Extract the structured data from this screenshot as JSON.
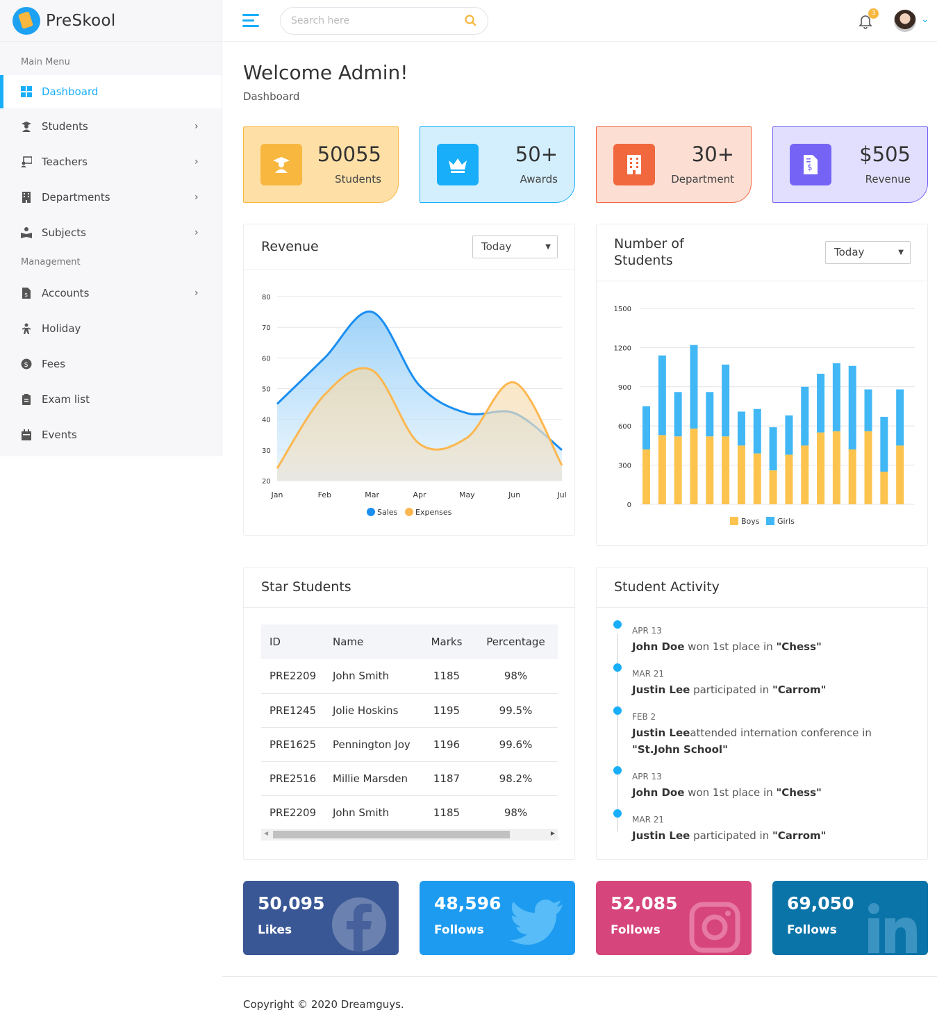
{
  "brand": {
    "name": "PreSkool"
  },
  "sidebar": {
    "main_title": "Main Menu",
    "management_title": "Management",
    "items": [
      {
        "label": "Dashboard",
        "icon": "dashboard-icon",
        "active": true
      },
      {
        "label": "Students",
        "icon": "graduate-icon",
        "submenu": true
      },
      {
        "label": "Teachers",
        "icon": "teacher-icon",
        "submenu": true
      },
      {
        "label": "Departments",
        "icon": "building-icon",
        "submenu": true
      },
      {
        "label": "Subjects",
        "icon": "book-reader-icon",
        "submenu": true
      }
    ],
    "management_items": [
      {
        "label": "Accounts",
        "icon": "invoice-icon",
        "submenu": true
      },
      {
        "label": "Holiday",
        "icon": "holiday-icon"
      },
      {
        "label": "Fees",
        "icon": "dollar-icon"
      },
      {
        "label": "Exam list",
        "icon": "clipboard-icon"
      },
      {
        "label": "Events",
        "icon": "calendar-icon"
      }
    ]
  },
  "header": {
    "search_placeholder": "Search here",
    "notification_count": "3"
  },
  "page": {
    "title": "Welcome Admin!",
    "breadcrumb": "Dashboard"
  },
  "stats": [
    {
      "value": "50055",
      "label": "Students",
      "icon": "graduate-icon",
      "color": "#f8b73f"
    },
    {
      "value": "50+",
      "label": "Awards",
      "icon": "crown-icon",
      "color": "#18aefa"
    },
    {
      "value": "30+",
      "label": "Department",
      "icon": "building-icon",
      "color": "#f1673e"
    },
    {
      "value": "$505",
      "label": "Revenue",
      "icon": "invoice-dollar-icon",
      "color": "#7563f5"
    }
  ],
  "revenue": {
    "title": "Revenue",
    "range": "Today"
  },
  "students_chart": {
    "title_line1": "Number of",
    "title_line2": "Students",
    "range": "Today"
  },
  "chart_data": [
    {
      "type": "area",
      "title": "Revenue",
      "categories": [
        "Jan",
        "Feb",
        "Mar",
        "Apr",
        "May",
        "Jun",
        "Jul"
      ],
      "series": [
        {
          "name": "Sales",
          "color": "#1a8ef1",
          "values": [
            45,
            60,
            75,
            51,
            42,
            42,
            30
          ]
        },
        {
          "name": "Expenses",
          "color": "#fcb750",
          "values": [
            24,
            48,
            56,
            32,
            34,
            52,
            25
          ]
        }
      ],
      "ylim": [
        20,
        80
      ],
      "yticks": [
        20,
        30,
        40,
        50,
        60,
        70,
        80
      ],
      "legend": "bottom"
    },
    {
      "type": "bar",
      "title": "Number of Students",
      "stacked": true,
      "series": [
        {
          "name": "Boys",
          "color": "#fcc44e",
          "values": [
            420,
            530,
            520,
            580,
            520,
            520,
            450,
            390,
            260,
            380,
            450,
            550,
            560,
            420,
            560,
            250,
            450
          ]
        },
        {
          "name": "Girls",
          "color": "#41b7f5",
          "values": [
            330,
            610,
            340,
            640,
            340,
            550,
            260,
            340,
            330,
            300,
            450,
            450,
            520,
            640,
            320,
            420,
            430
          ]
        }
      ],
      "ylim": [
        0,
        1500
      ],
      "yticks": [
        0,
        300,
        600,
        900,
        1200,
        1500
      ],
      "legend": "bottom"
    }
  ],
  "star_students": {
    "title": "Star Students",
    "columns": [
      "ID",
      "Name",
      "Marks",
      "Percentage"
    ],
    "rows": [
      [
        "PRE2209",
        "John Smith",
        "1185",
        "98%"
      ],
      [
        "PRE1245",
        "Jolie Hoskins",
        "1195",
        "99.5%"
      ],
      [
        "PRE1625",
        "Pennington Joy",
        "1196",
        "99.6%"
      ],
      [
        "PRE2516",
        "Millie Marsden",
        "1187",
        "98.2%"
      ],
      [
        "PRE2209",
        "John Smith",
        "1185",
        "98%"
      ]
    ]
  },
  "activity": {
    "title": "Student Activity",
    "items": [
      {
        "date": "APR 13",
        "name": "John Doe",
        "action": " won 1st place in ",
        "event": "\"Chess\""
      },
      {
        "date": "MAR 21",
        "name": "Justin Lee",
        "action": " participated in ",
        "event": "\"Carrom\""
      },
      {
        "date": "FEB 2",
        "name": "Justin Lee",
        "action": "attended internation conference in ",
        "event": "\"St.John School\""
      },
      {
        "date": "APR 13",
        "name": "John Doe",
        "action": " won 1st place in ",
        "event": "\"Chess\""
      },
      {
        "date": "MAR 21",
        "name": "Justin Lee",
        "action": " participated in ",
        "event": "\"Carrom\""
      }
    ]
  },
  "social": [
    {
      "value": "50,095",
      "label": "Likes",
      "icon": "facebook-icon",
      "color": "#3a5795"
    },
    {
      "value": "48,596",
      "label": "Follows",
      "icon": "twitter-icon",
      "color": "#1d9bf0"
    },
    {
      "value": "52,085",
      "label": "Follows",
      "icon": "instagram-icon",
      "color": "#d6457c"
    },
    {
      "value": "69,050",
      "label": "Follows",
      "icon": "linkedin-icon",
      "color": "#0a74a8"
    }
  ],
  "footer": {
    "copyright": "Copyright © 2020 Dreamguys."
  }
}
